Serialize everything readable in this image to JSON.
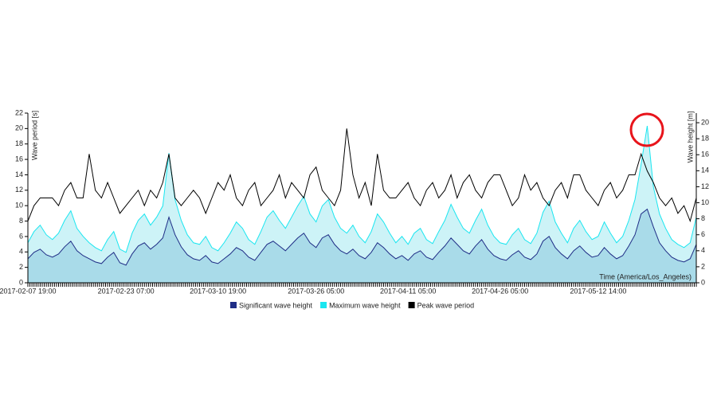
{
  "chart_data": {
    "type": "area-line",
    "y_label": "Wave period [s]",
    "y2_label": "Wave height [m]",
    "x_label": "Time (America/Los_Angeles)",
    "categories": [
      "2017-02-07 19:00",
      null,
      null,
      null,
      null,
      null,
      null,
      null,
      null,
      null,
      null,
      null,
      null,
      null,
      null,
      null,
      "2017-02-23 07:00",
      null,
      null,
      null,
      null,
      null,
      null,
      null,
      null,
      null,
      null,
      null,
      null,
      null,
      null,
      "2017-03-10 19:00",
      null,
      null,
      null,
      null,
      null,
      null,
      null,
      null,
      null,
      null,
      null,
      null,
      null,
      null,
      null,
      "2017-03-26 05:00",
      null,
      null,
      null,
      null,
      null,
      null,
      null,
      null,
      null,
      null,
      null,
      null,
      null,
      null,
      "2017-04-11 05:00",
      null,
      null,
      null,
      null,
      null,
      null,
      null,
      null,
      null,
      null,
      null,
      null,
      null,
      null,
      "2017-04-26 05:00",
      null,
      null,
      null,
      null,
      null,
      null,
      null,
      null,
      null,
      null,
      null,
      null,
      null,
      null,
      null,
      "2017-05-12 14:00",
      null,
      null,
      null,
      null,
      null,
      null,
      null,
      null,
      null,
      null,
      null,
      null,
      null,
      null,
      null,
      null
    ],
    "series": [
      {
        "name": "Significant wave height",
        "color": "#1f2d86",
        "fill": "#a9dbe9",
        "axis": "y2",
        "values": [
          3.0,
          3.8,
          4.2,
          3.5,
          3.2,
          3.6,
          4.5,
          5.2,
          4.0,
          3.4,
          3.0,
          2.6,
          2.4,
          3.2,
          3.8,
          2.5,
          2.2,
          3.6,
          4.6,
          5.0,
          4.2,
          4.8,
          5.6,
          8.2,
          6.0,
          4.5,
          3.5,
          3.0,
          2.8,
          3.4,
          2.6,
          2.4,
          3.0,
          3.6,
          4.4,
          4.0,
          3.2,
          2.8,
          3.8,
          4.8,
          5.2,
          4.6,
          4.0,
          4.8,
          5.6,
          6.2,
          5.0,
          4.4,
          5.6,
          6.0,
          4.8,
          4.0,
          3.6,
          4.2,
          3.4,
          3.0,
          3.8,
          5.0,
          4.4,
          3.6,
          3.0,
          3.4,
          2.8,
          3.6,
          4.0,
          3.2,
          2.9,
          3.8,
          4.6,
          5.6,
          4.8,
          4.0,
          3.6,
          4.6,
          5.4,
          4.2,
          3.4,
          3.0,
          2.8,
          3.5,
          4.0,
          3.2,
          2.9,
          3.6,
          5.2,
          5.8,
          4.4,
          3.6,
          3.0,
          4.0,
          4.6,
          3.8,
          3.2,
          3.4,
          4.4,
          3.6,
          3.0,
          3.4,
          4.6,
          6.0,
          8.6,
          9.2,
          7.0,
          5.0,
          4.0,
          3.2,
          2.8,
          2.6,
          3.0,
          4.8
        ]
      },
      {
        "name": "Maximum wave height",
        "color": "#19e6f0",
        "fill": "#cdf3f7",
        "axis": "y2",
        "values": [
          5.0,
          6.4,
          7.2,
          6.0,
          5.4,
          6.2,
          7.8,
          9.0,
          6.8,
          5.8,
          5.0,
          4.4,
          4.0,
          5.4,
          6.4,
          4.2,
          3.8,
          6.2,
          7.8,
          8.6,
          7.2,
          8.2,
          9.6,
          16.2,
          10.4,
          7.8,
          6.0,
          5.0,
          4.8,
          5.8,
          4.4,
          4.0,
          5.0,
          6.2,
          7.6,
          6.8,
          5.4,
          4.8,
          6.4,
          8.2,
          9.0,
          7.8,
          6.8,
          8.2,
          9.6,
          10.8,
          8.6,
          7.6,
          9.6,
          10.4,
          8.2,
          6.8,
          6.2,
          7.2,
          5.8,
          5.0,
          6.4,
          8.6,
          7.6,
          6.2,
          5.0,
          5.8,
          4.8,
          6.2,
          6.8,
          5.4,
          4.9,
          6.4,
          7.8,
          9.8,
          8.2,
          6.8,
          6.2,
          7.8,
          9.2,
          7.2,
          5.8,
          5.0,
          4.8,
          6.0,
          6.8,
          5.4,
          4.9,
          6.2,
          8.8,
          10.2,
          7.6,
          6.2,
          5.0,
          6.8,
          7.8,
          6.4,
          5.4,
          5.8,
          7.6,
          6.2,
          5.0,
          5.8,
          7.8,
          10.4,
          14.8,
          19.6,
          12.0,
          8.6,
          6.8,
          5.4,
          4.8,
          4.4,
          5.0,
          8.2
        ]
      },
      {
        "name": "Peak wave period",
        "color": "#000000",
        "axis": "y",
        "values": [
          8,
          10,
          11,
          11,
          11,
          10,
          12,
          13,
          11,
          11,
          16.7,
          12,
          11,
          13,
          11,
          9,
          10,
          11,
          12,
          10,
          12,
          11,
          13,
          16.7,
          11,
          10,
          11,
          12,
          11,
          9,
          11,
          13,
          12,
          14,
          11,
          10,
          12,
          13,
          10,
          11,
          12,
          14,
          11,
          13,
          12,
          11,
          14,
          15,
          12,
          11,
          10,
          12,
          20,
          14,
          11,
          13,
          10,
          16.7,
          12,
          11,
          11,
          12,
          13,
          11,
          10,
          12,
          13,
          11,
          12,
          14,
          11,
          13,
          14,
          12,
          11,
          13,
          14,
          14,
          12,
          10,
          11,
          14,
          12,
          13,
          11,
          10,
          12,
          13,
          11,
          14,
          14,
          12,
          11,
          10,
          12,
          13,
          11,
          12,
          14,
          14,
          16.7,
          14.5,
          13,
          11,
          10,
          11,
          9,
          10,
          8,
          11
        ]
      }
    ],
    "ylim": [
      0,
      22
    ],
    "yticks": [
      0,
      2,
      4,
      6,
      8,
      10,
      12,
      14,
      16,
      18,
      20,
      22
    ],
    "y2lim": [
      0,
      21.2
    ],
    "y2ticks": [
      0,
      2,
      4,
      6,
      8,
      10,
      12,
      14,
      16,
      18,
      20
    ],
    "legend": "bottom"
  }
}
